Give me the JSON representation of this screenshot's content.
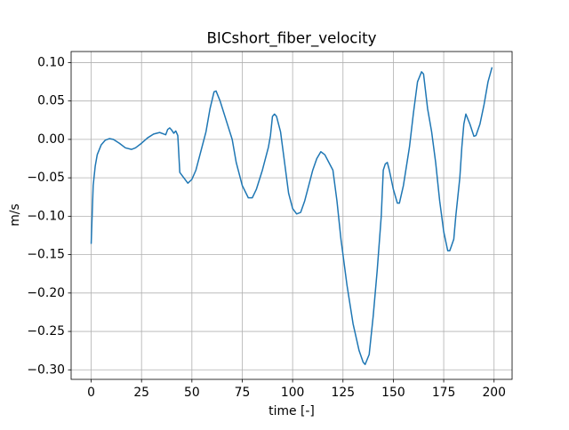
{
  "chart_data": {
    "type": "line",
    "title": "BICshort_fiber_velocity",
    "x_label": "time [-]",
    "y_label": "m/s",
    "x": [
      0,
      1,
      2,
      3,
      5,
      7,
      9,
      11,
      14,
      17,
      20,
      22,
      25,
      28,
      31,
      34,
      36,
      37,
      38,
      39,
      40,
      41,
      42,
      43,
      44,
      46,
      48,
      50,
      52,
      55,
      57,
      59,
      61,
      62,
      64,
      67,
      70,
      72,
      75,
      78,
      80,
      82,
      85,
      88,
      89,
      90,
      91,
      92,
      94,
      96,
      98,
      100,
      102,
      104,
      106,
      108,
      110,
      112,
      114,
      116,
      118,
      120,
      122,
      124,
      127,
      130,
      133,
      135,
      136,
      138,
      140,
      142,
      144,
      145,
      146,
      147,
      148,
      150,
      152,
      153,
      155,
      158,
      160,
      162,
      164,
      165,
      167,
      169,
      171,
      173,
      175,
      177,
      178,
      180,
      181,
      183,
      184,
      185,
      186,
      188,
      190,
      191,
      193,
      195,
      197,
      199
    ],
    "values": [
      -0.136,
      -0.06,
      -0.035,
      -0.02,
      -0.007,
      -0.001,
      0.001,
      0.0,
      -0.005,
      -0.011,
      -0.013,
      -0.011,
      -0.005,
      0.002,
      0.007,
      0.009,
      0.007,
      0.006,
      0.013,
      0.015,
      0.012,
      0.008,
      0.011,
      0.005,
      -0.043,
      -0.05,
      -0.057,
      -0.052,
      -0.04,
      -0.01,
      0.01,
      0.04,
      0.062,
      0.063,
      0.05,
      0.025,
      0.0,
      -0.03,
      -0.06,
      -0.076,
      -0.076,
      -0.065,
      -0.04,
      -0.01,
      0.005,
      0.03,
      0.033,
      0.03,
      0.01,
      -0.03,
      -0.07,
      -0.09,
      -0.097,
      -0.095,
      -0.08,
      -0.06,
      -0.04,
      -0.025,
      -0.016,
      -0.02,
      -0.03,
      -0.04,
      -0.08,
      -0.13,
      -0.19,
      -0.24,
      -0.275,
      -0.29,
      -0.293,
      -0.28,
      -0.23,
      -0.17,
      -0.1,
      -0.04,
      -0.032,
      -0.03,
      -0.04,
      -0.065,
      -0.083,
      -0.083,
      -0.06,
      -0.01,
      0.035,
      0.075,
      0.088,
      0.085,
      0.04,
      0.01,
      -0.03,
      -0.08,
      -0.12,
      -0.145,
      -0.145,
      -0.13,
      -0.1,
      -0.05,
      -0.01,
      0.02,
      0.033,
      0.02,
      0.004,
      0.005,
      0.02,
      0.045,
      0.075,
      0.094
    ],
    "color": "#1f77b4",
    "xlim": [
      -9.95,
      208.95
    ],
    "ylim": [
      -0.3124,
      0.1144
    ],
    "xticks": [
      0,
      25,
      50,
      75,
      100,
      125,
      150,
      175,
      200
    ],
    "yticks": [
      {
        "value": -0.3,
        "label": "−0.30"
      },
      {
        "value": -0.25,
        "label": "−0.25"
      },
      {
        "value": -0.2,
        "label": "−0.20"
      },
      {
        "value": -0.15,
        "label": "−0.15"
      },
      {
        "value": -0.1,
        "label": "−0.10"
      },
      {
        "value": -0.05,
        "label": "−0.05"
      },
      {
        "value": 0,
        "label": "0.00"
      },
      {
        "value": 0.05,
        "label": "0.05"
      },
      {
        "value": 0.1,
        "label": "0.10"
      }
    ],
    "grid": true
  }
}
